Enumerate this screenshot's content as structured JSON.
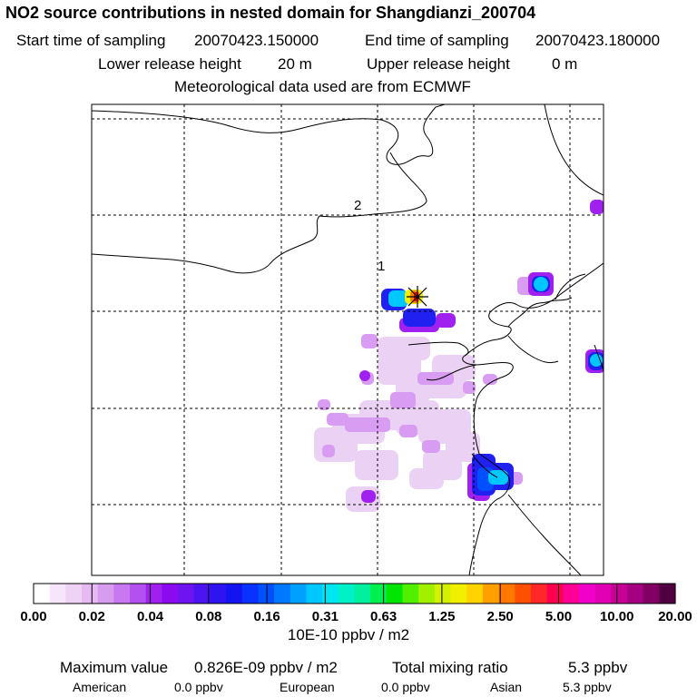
{
  "header": {
    "title": "NO2 source contributions in nested domain for Shangdianzi_200704",
    "start_label": "Start time of sampling",
    "start_value": "20070423.150000",
    "end_label": "End time of sampling",
    "end_value": "20070423.180000",
    "lower_label": "Lower release height",
    "lower_value": "20 m",
    "upper_label": "Upper release height",
    "upper_value": "0 m",
    "met": "Meteorological data used are from ECMWF"
  },
  "map": {
    "labels": [
      "1",
      "2"
    ],
    "colors": {
      "light": "#ebd2f5",
      "pink": "#d89cf2",
      "violet": "#a020f0",
      "blue": "#2020f0",
      "royal": "#0050ff",
      "cyan": "#00c8ff",
      "yellow": "#f0f000",
      "orange": "#ff8000",
      "red": "#ff0000"
    }
  },
  "colorbar": {
    "ticks": [
      "0.00",
      "0.02",
      "0.04",
      "0.08",
      "0.16",
      "0.31",
      "0.63",
      "1.25",
      "2.50",
      "5.00",
      "10.00",
      "20.00"
    ],
    "units": "10E-10 ppbv / m2",
    "swatches": [
      "#ffffff",
      "#f7e6fb",
      "#f0d2f7",
      "#e6b9f2",
      "#d79bf0",
      "#c878f0",
      "#b450f0",
      "#a020f0",
      "#8c0af0",
      "#6e14f0",
      "#4b14f0",
      "#2d14f0",
      "#1414f0",
      "#0a32ff",
      "#0050ff",
      "#0078ff",
      "#00a0ff",
      "#00c8ff",
      "#00e6f0",
      "#00f0c8",
      "#00f0a0",
      "#00f050",
      "#00e600",
      "#50f000",
      "#a0f000",
      "#d2f000",
      "#f0f000",
      "#ffd200",
      "#ffa000",
      "#ff7800",
      "#ff5000",
      "#ff2828",
      "#ff0050",
      "#ff0096",
      "#f000c8",
      "#e100b4",
      "#c80096",
      "#a50082",
      "#820064",
      "#500040"
    ]
  },
  "footer": {
    "max_label": "Maximum value",
    "max_value": "0.826E-09 ppbv / m2",
    "total_label": "Total mixing ratio",
    "total_value": "5.3 ppbv",
    "american_label": "American",
    "american_value": "0.0 ppbv",
    "european_label": "European",
    "european_value": "0.0 ppbv",
    "asian_label": "Asian",
    "asian_value": "5.3 ppbv"
  }
}
